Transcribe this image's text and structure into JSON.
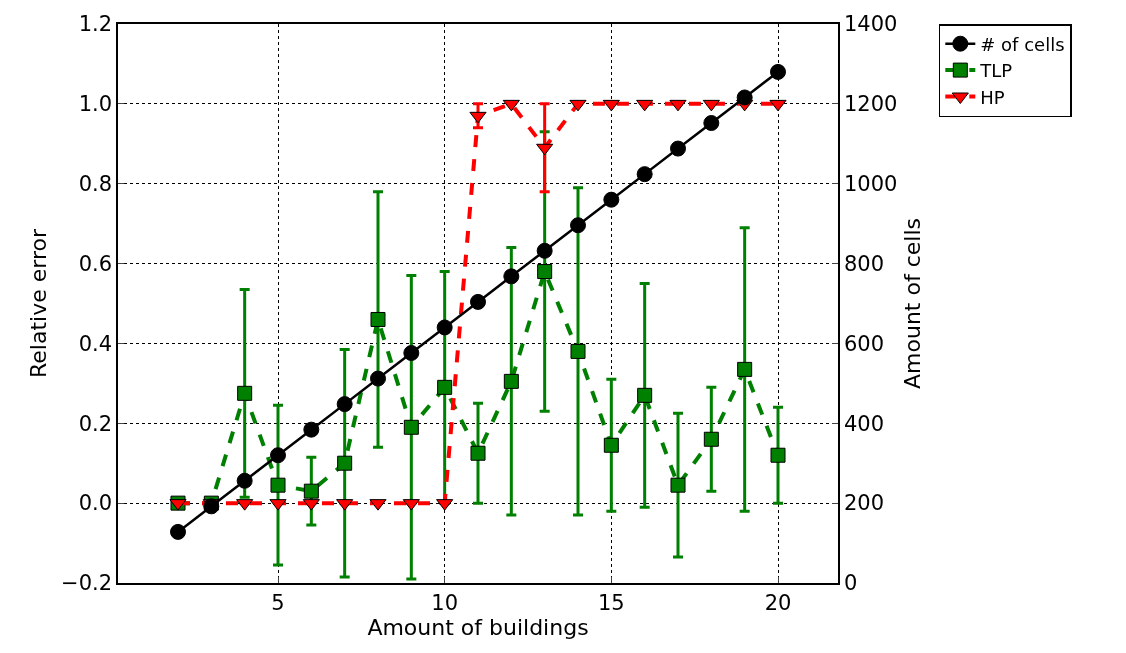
{
  "chart_data": {
    "type": "line",
    "xlabel": "Amount of buildings",
    "ylabel": "Relative error",
    "y2label": "Amount of cells",
    "x": [
      2,
      3,
      4,
      5,
      6,
      7,
      8,
      9,
      10,
      11,
      12,
      13,
      14,
      15,
      16,
      17,
      18,
      19,
      20
    ],
    "xlim": [
      0.2,
      21.8
    ],
    "xticks": [
      5,
      10,
      15,
      20
    ],
    "ylim": [
      -0.2,
      1.2
    ],
    "yticks": [
      {
        "value": -0.2,
        "label": "−0.2"
      },
      {
        "value": 0,
        "label": "0.0"
      },
      {
        "value": 0.2,
        "label": "0.2"
      },
      {
        "value": 0.4,
        "label": "0.4"
      },
      {
        "value": 0.6,
        "label": "0.6"
      },
      {
        "value": 0.8,
        "label": "0.8"
      },
      {
        "value": 1.0,
        "label": "1.0"
      },
      {
        "value": 1.2,
        "label": "1.2"
      }
    ],
    "y2lim": [
      0,
      1400
    ],
    "y2ticks": [
      0,
      200,
      400,
      600,
      800,
      1000,
      1200,
      1400
    ],
    "grid": true,
    "legend": "top right",
    "series": [
      {
        "name": "# of cells",
        "color": "#000000",
        "axis": "y2",
        "marker": "circle",
        "line_style": "solid",
        "values": [
          128,
          192,
          256,
          320,
          384,
          448,
          512,
          576,
          640,
          704,
          768,
          832,
          896,
          960,
          1024,
          1088,
          1152,
          1216,
          1280
        ]
      },
      {
        "name": "TLP",
        "color": "#008000",
        "marker": "square",
        "line_style": "dashed",
        "values": [
          0,
          0,
          0.275,
          0.045,
          0.03,
          0.1,
          0.46,
          0.19,
          0.29,
          0.125,
          0.305,
          0.58,
          0.38,
          0.145,
          0.27,
          0.045,
          0.16,
          0.335,
          0.12
        ],
        "errors": [
          null,
          null,
          0.26,
          0.2,
          0.085,
          0.285,
          0.32,
          0.38,
          0.29,
          0.125,
          0.335,
          0.35,
          0.41,
          0.165,
          0.28,
          0.18,
          0.13,
          0.355,
          0.12
        ]
      },
      {
        "name": "HP",
        "color": "#ff0000",
        "marker": "triangle",
        "line_style": "dashed",
        "values": [
          0,
          0,
          0,
          0,
          0,
          0,
          0,
          0,
          0,
          0.97,
          1.0,
          0.89,
          1.0,
          1.0,
          1.0,
          1.0,
          1.0,
          1.0,
          1.0
        ],
        "errors": [
          null,
          null,
          null,
          null,
          null,
          null,
          null,
          null,
          null,
          0.03,
          null,
          0.11,
          null,
          null,
          null,
          null,
          null,
          null,
          null
        ]
      }
    ]
  }
}
